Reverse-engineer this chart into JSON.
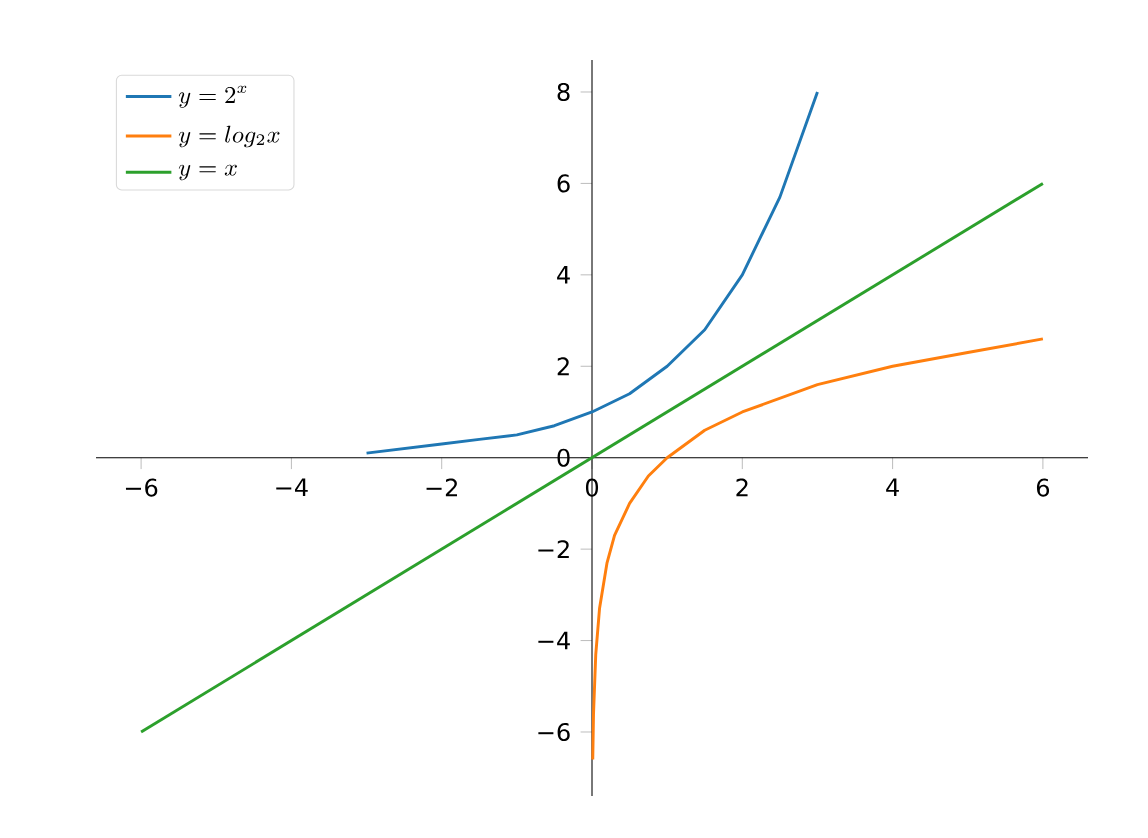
{
  "chart_data": {
    "type": "line",
    "legend": "top left",
    "grid": false,
    "xlim": [
      -6.6,
      6.6
    ],
    "ylim": [
      -7.4,
      8.7
    ],
    "xticks": [
      {
        "value": -6,
        "label": "−6"
      },
      {
        "value": -4,
        "label": "−4"
      },
      {
        "value": -2,
        "label": "−2"
      },
      0,
      2,
      4,
      6
    ],
    "yticks": [
      {
        "value": -6,
        "label": "−6"
      },
      {
        "value": -4,
        "label": "−4"
      },
      {
        "value": -2,
        "label": "−2"
      },
      0,
      2,
      4,
      6,
      8
    ],
    "series": [
      {
        "name": "y = 2^{x}",
        "color": "#1f77b4",
        "x": [
          -3,
          -2.5,
          -2,
          -1.5,
          -1,
          -0.5,
          0,
          0.5,
          1,
          1.5,
          2,
          2.5,
          3
        ],
        "values": [
          0.1,
          0.2,
          0.3,
          0.4,
          0.5,
          0.7,
          1,
          1.4,
          2,
          2.8,
          4,
          5.7,
          8
        ]
      },
      {
        "name": "y = log_{2}x",
        "color": "#ff7f0e",
        "x": [
          0.01,
          0.02,
          0.05,
          0.1,
          0.2,
          0.3,
          0.5,
          0.75,
          1,
          1.5,
          2,
          3,
          4,
          5,
          6
        ],
        "values": [
          -6.6,
          -5.6,
          -4.3,
          -3.3,
          -2.3,
          -1.7,
          -1,
          -0.4,
          0,
          0.6,
          1,
          1.6,
          2,
          2.3,
          2.6
        ]
      },
      {
        "name": "y = x",
        "color": "#2ca02c",
        "x": [
          -6,
          6
        ],
        "values": [
          -6,
          6
        ]
      }
    ]
  }
}
